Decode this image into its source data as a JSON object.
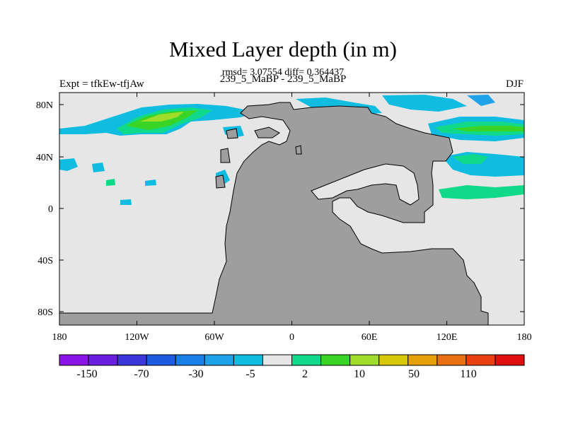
{
  "title": "Mixed Layer depth (in m)",
  "stats_line": "rmsd= 3.07554 diff= 0.364437",
  "periods_line": "239_5_MaBP - 239_5_MaBP",
  "experiment_label": "Expt = tfkEw-tfjAw",
  "season_label": "DJF",
  "lat_ticks": [
    "80N",
    "40N",
    "0",
    "40S",
    "80S"
  ],
  "lon_ticks": [
    "180",
    "120W",
    "60W",
    "0",
    "60E",
    "120E",
    "180"
  ],
  "colorbar": {
    "labels": [
      "-150",
      "-70",
      "-30",
      "-5",
      "2",
      "10",
      "50",
      "110"
    ],
    "colors": [
      "#8a14e6",
      "#6a1ee0",
      "#3b37d9",
      "#1d5be0",
      "#1a7ee8",
      "#1fa2e8",
      "#10bde0",
      "#e6e6e6",
      "#10d98a",
      "#3ad426",
      "#a0dd2a",
      "#d8c80a",
      "#e8a00a",
      "#e87010",
      "#e84010",
      "#e01010"
    ]
  },
  "colors": {
    "ocean_fill": "#e6e6e6",
    "land_fill": "#9e9e9e",
    "coast": "#000000"
  }
}
